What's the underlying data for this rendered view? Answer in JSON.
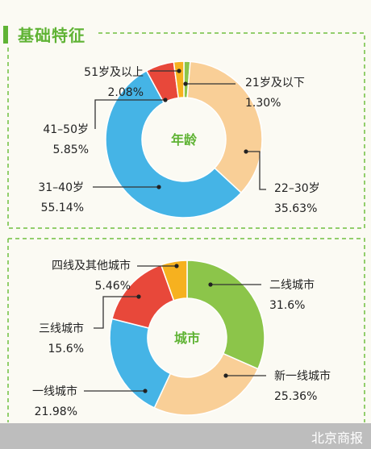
{
  "header": {
    "title": "基础特征"
  },
  "footer": {
    "source": "北京商报"
  },
  "chart_data": [
    {
      "type": "pie",
      "center_label": "年龄",
      "categories": [
        "21岁及以下",
        "22–30岁",
        "31–40岁",
        "41–50岁",
        "51岁及以上"
      ],
      "value_labels": [
        "1.30%",
        "35.63%",
        "55.14%",
        "5.85%",
        "2.08%"
      ],
      "values": [
        1.3,
        35.63,
        55.14,
        5.85,
        2.08
      ],
      "colors": [
        "#8cc54a",
        "#f9cf97",
        "#45b4e6",
        "#e8483a",
        "#f6b11f"
      ]
    },
    {
      "type": "pie",
      "center_label": "城市",
      "categories": [
        "二线城市",
        "新一线城市",
        "一线城市",
        "三线城市",
        "四线及其他城市"
      ],
      "value_labels": [
        "31.6%",
        "25.36%",
        "21.98%",
        "15.6%",
        "5.46%"
      ],
      "values": [
        31.6,
        25.36,
        21.98,
        15.6,
        5.46
      ],
      "colors": [
        "#8cc54a",
        "#f9cf97",
        "#45b4e6",
        "#e8483a",
        "#f6b11f"
      ]
    }
  ]
}
